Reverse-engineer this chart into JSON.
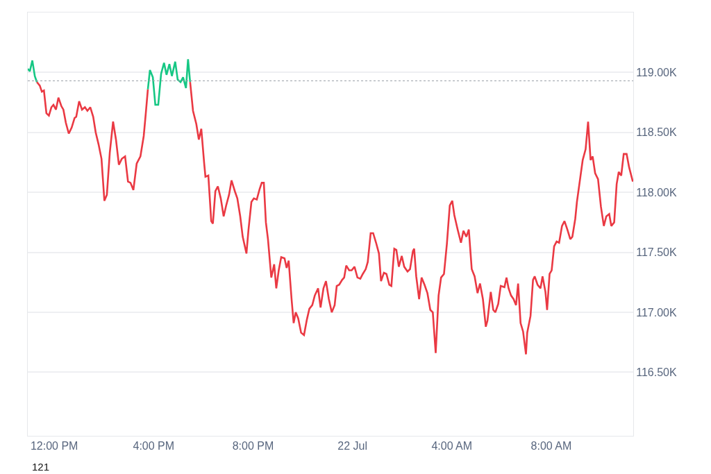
{
  "chart_data": {
    "type": "line",
    "xlim": [
      "--07-21T10:56",
      "--07-22T11:18"
    ],
    "xticks": [
      {
        "value": "--07-21T12:00",
        "label": "12:00 PM"
      },
      {
        "value": "--07-21T16:00",
        "label": "4:00 PM"
      },
      {
        "value": "--07-21T20:00",
        "label": "8:00 PM"
      },
      {
        "value": "--07-22T00:00",
        "label": "22 Jul"
      },
      {
        "value": "--07-22T04:00",
        "label": "4:00 AM"
      },
      {
        "value": "--07-22T08:00",
        "label": "8:00 AM"
      }
    ],
    "ylim": [
      115.97,
      119.5
    ],
    "yticks": [
      {
        "value": 116.5,
        "label": "116.50K"
      },
      {
        "value": 117,
        "label": "117.00K"
      },
      {
        "value": 117.5,
        "label": "117.50K"
      },
      {
        "value": 118,
        "label": "118.00K"
      },
      {
        "value": 118.5,
        "label": "118.50K"
      },
      {
        "value": 119,
        "label": "119.00K"
      }
    ],
    "grid": "y",
    "marker": "none",
    "line_style": "solid",
    "ref_lines": [
      {
        "axis": "y",
        "value": 118.93,
        "color": "#9aa0a8",
        "line_style": "dotted"
      }
    ],
    "annotations": [
      "121"
    ],
    "series": [
      {
        "color": "#16c784",
        "x": [
          "--07-21T10:56",
          "--07-21T11:01",
          "--07-21T11:07",
          "--07-21T11:13",
          "--07-21T11:18"
        ],
        "values": [
          119.03,
          119.01,
          119.1,
          118.97,
          118.92
        ]
      },
      {
        "color": "#ea3943",
        "x": [
          "--07-21T11:18",
          "--07-21T11:25",
          "--07-21T11:30",
          "--07-21T11:35",
          "--07-21T11:41",
          "--07-21T11:47",
          "--07-21T11:53",
          "--07-21T11:58",
          "--07-21T12:04",
          "--07-21T12:10",
          "--07-21T12:17",
          "--07-21T12:22",
          "--07-21T12:28",
          "--07-21T12:35",
          "--07-21T12:42",
          "--07-21T12:49",
          "--07-21T12:53",
          "--07-21T13:00",
          "--07-21T13:07",
          "--07-21T13:14",
          "--07-21T13:20",
          "--07-21T13:27",
          "--07-21T13:34",
          "--07-21T13:40",
          "--07-21T13:47",
          "--07-21T13:54",
          "--07-21T14:01",
          "--07-21T14:07",
          "--07-21T14:14",
          "--07-21T14:22",
          "--07-21T14:29",
          "--07-21T14:36",
          "--07-21T14:43",
          "--07-21T14:51",
          "--07-21T14:58",
          "--07-21T15:04",
          "--07-21T15:11",
          "--07-21T15:19",
          "--07-21T15:28",
          "--07-21T15:36",
          "--07-21T15:41",
          "--07-21T15:46"
        ],
        "values": [
          118.92,
          118.89,
          118.84,
          118.85,
          118.66,
          118.64,
          118.71,
          118.73,
          118.69,
          118.79,
          118.72,
          118.69,
          118.58,
          118.49,
          118.54,
          118.62,
          118.63,
          118.76,
          118.69,
          118.71,
          118.68,
          118.71,
          118.63,
          118.5,
          118.4,
          118.28,
          117.93,
          117.98,
          118.33,
          118.59,
          118.44,
          118.23,
          118.28,
          118.3,
          118.09,
          118.08,
          118.02,
          118.24,
          118.3,
          118.47,
          118.66,
          118.86
        ]
      },
      {
        "color": "#16c784",
        "x": [
          "--07-21T15:46",
          "--07-21T15:51",
          "--07-21T15:58",
          "--07-21T16:04",
          "--07-21T16:11",
          "--07-21T16:18",
          "--07-21T16:25",
          "--07-21T16:31",
          "--07-21T16:38",
          "--07-21T16:44",
          "--07-21T16:52",
          "--07-21T16:58",
          "--07-21T17:05",
          "--07-21T17:11",
          "--07-21T17:18",
          "--07-21T17:23",
          "--07-21T17:28"
        ],
        "values": [
          118.86,
          119.02,
          118.96,
          118.73,
          118.73,
          118.99,
          119.08,
          118.98,
          119.07,
          118.97,
          119.09,
          118.94,
          118.92,
          118.96,
          118.87,
          119.11,
          118.92
        ]
      },
      {
        "color": "#ea3943",
        "x": [
          "--07-21T17:28",
          "--07-21T17:35",
          "--07-21T17:43",
          "--07-21T17:49",
          "--07-21T17:55",
          "--07-21T18:02",
          "--07-21T18:05",
          "--07-21T18:12",
          "--07-21T18:19",
          "--07-21T18:23",
          "--07-21T18:29",
          "--07-21T18:35",
          "--07-21T18:42",
          "--07-21T18:49",
          "--07-21T18:55",
          "--07-21T19:02",
          "--07-21T19:08",
          "--07-21T19:16",
          "--07-21T19:22",
          "--07-21T19:29",
          "--07-21T19:35",
          "--07-21T19:44",
          "--07-21T19:49",
          "--07-21T19:56",
          "--07-21T20:02",
          "--07-21T20:09",
          "--07-21T20:16",
          "--07-21T20:21",
          "--07-21T20:26",
          "--07-21T20:31",
          "--07-21T20:36",
          "--07-21T20:44",
          "--07-21T20:51",
          "--07-21T20:56",
          "--07-21T21:02",
          "--07-21T21:08",
          "--07-21T21:16",
          "--07-21T21:21",
          "--07-21T21:26",
          "--07-21T21:33",
          "--07-21T21:38",
          "--07-21T21:43",
          "--07-21T21:49",
          "--07-21T21:56",
          "--07-21T22:03",
          "--07-21T22:10",
          "--07-21T22:16",
          "--07-21T22:23",
          "--07-21T22:29",
          "--07-21T22:37",
          "--07-21T22:43",
          "--07-21T22:50",
          "--07-21T22:56",
          "--07-21T23:03",
          "--07-21T23:10",
          "--07-21T23:17",
          "--07-21T23:22",
          "--07-21T23:28",
          "--07-21T23:35",
          "--07-21T23:40",
          "--07-21T23:45",
          "--07-21T23:52",
          "--07-21T23:58",
          "--07-22T00:05",
          "--07-22T00:12",
          "--07-22T00:19",
          "--07-22T00:25",
          "--07-22T00:32",
          "--07-22T00:37",
          "--07-22T00:44",
          "--07-22T00:50",
          "--07-22T00:57",
          "--07-22T01:04",
          "--07-22T01:09",
          "--07-22T01:16",
          "--07-22T01:22",
          "--07-22T01:29",
          "--07-22T01:34",
          "--07-22T01:41",
          "--07-22T01:46",
          "--07-22T01:52",
          "--07-22T01:59",
          "--07-22T02:05",
          "--07-22T02:13",
          "--07-22T02:19",
          "--07-22T02:26",
          "--07-22T02:29",
          "--07-22T02:34",
          "--07-22T02:41",
          "--07-22T02:47",
          "--07-22T02:54",
          "--07-22T03:01",
          "--07-22T03:08",
          "--07-22T03:14",
          "--07-22T03:21",
          "--07-22T03:28",
          "--07-22T03:34",
          "--07-22T03:41",
          "--07-22T03:48",
          "--07-22T03:55",
          "--07-22T04:01",
          "--07-22T04:06",
          "--07-22T04:14",
          "--07-22T04:22",
          "--07-22T04:28",
          "--07-22T04:35",
          "--07-22T04:41",
          "--07-22T04:48",
          "--07-22T04:55",
          "--07-22T05:02",
          "--07-22T05:08",
          "--07-22T05:15",
          "--07-22T05:22",
          "--07-22T05:26",
          "--07-22T05:34",
          "--07-22T05:40",
          "--07-22T05:45",
          "--07-22T05:52",
          "--07-22T05:58",
          "--07-22T06:07",
          "--07-22T06:12",
          "--07-22T06:17",
          "--07-22T06:23",
          "--07-22T06:29",
          "--07-22T06:35",
          "--07-22T06:40",
          "--07-22T06:46",
          "--07-22T06:52",
          "--07-22T06:59",
          "--07-22T07:02",
          "--07-22T07:10",
          "--07-22T07:16",
          "--07-22T07:20",
          "--07-22T07:27",
          "--07-22T07:34",
          "--07-22T07:39",
          "--07-22T07:46",
          "--07-22T07:50",
          "--07-22T07:56",
          "--07-22T08:01",
          "--07-22T08:07",
          "--07-22T08:13",
          "--07-22T08:19",
          "--07-22T08:26",
          "--07-22T08:32",
          "--07-22T08:39",
          "--07-22T08:46",
          "--07-22T08:51",
          "--07-22T08:58",
          "--07-22T09:02",
          "--07-22T09:08",
          "--07-22T09:16",
          "--07-22T09:23",
          "--07-22T09:29",
          "--07-22T09:35",
          "--07-22T09:40",
          "--07-22T09:46",
          "--07-22T09:53",
          "--07-22T10:00",
          "--07-22T10:07",
          "--07-22T10:13",
          "--07-22T10:20",
          "--07-22T10:25",
          "--07-22T10:32",
          "--07-22T10:38",
          "--07-22T10:43",
          "--07-22T10:49",
          "--07-22T10:55",
          "--07-22T11:02",
          "--07-22T11:08",
          "--07-22T11:17"
        ],
        "values": [
          118.92,
          118.68,
          118.57,
          118.44,
          118.53,
          118.24,
          118.13,
          118.14,
          117.76,
          117.74,
          118.01,
          118.05,
          117.95,
          117.8,
          117.89,
          117.98,
          118.1,
          118.01,
          117.95,
          117.8,
          117.63,
          117.49,
          117.69,
          117.92,
          117.95,
          117.94,
          118.03,
          118.08,
          118.08,
          117.75,
          117.61,
          117.29,
          117.4,
          117.2,
          117.35,
          117.46,
          117.45,
          117.37,
          117.43,
          117.11,
          116.91,
          117.0,
          116.95,
          116.83,
          116.81,
          116.94,
          117.03,
          117.06,
          117.14,
          117.2,
          117.04,
          117.2,
          117.26,
          117.11,
          117.0,
          117.06,
          117.22,
          117.23,
          117.27,
          117.29,
          117.39,
          117.35,
          117.35,
          117.38,
          117.29,
          117.28,
          117.32,
          117.36,
          117.42,
          117.66,
          117.66,
          117.58,
          117.49,
          117.26,
          117.33,
          117.32,
          117.23,
          117.22,
          117.53,
          117.52,
          117.38,
          117.47,
          117.38,
          117.34,
          117.36,
          117.51,
          117.53,
          117.3,
          117.11,
          117.29,
          117.23,
          117.16,
          117.02,
          117.0,
          116.66,
          117.14,
          117.29,
          117.32,
          117.57,
          117.89,
          117.93,
          117.81,
          117.69,
          117.58,
          117.68,
          117.63,
          117.69,
          117.36,
          117.3,
          117.16,
          117.24,
          117.11,
          116.88,
          116.93,
          117.17,
          117.02,
          117.0,
          117.07,
          117.22,
          117.21,
          117.29,
          117.2,
          117.14,
          117.11,
          117.06,
          117.24,
          116.91,
          116.84,
          116.65,
          116.83,
          116.97,
          117.27,
          117.3,
          117.23,
          117.2,
          117.3,
          117.17,
          117.02,
          117.32,
          117.35,
          117.55,
          117.59,
          117.58,
          117.72,
          117.76,
          117.69,
          117.61,
          117.63,
          117.78,
          117.92,
          118.07,
          118.27,
          118.36,
          118.59,
          118.27,
          118.3,
          118.16,
          118.11,
          117.88,
          117.72,
          117.8,
          117.82,
          117.72,
          117.75,
          118.07,
          118.17,
          118.14,
          118.32,
          118.32,
          118.21,
          118.09
        ]
      }
    ]
  }
}
